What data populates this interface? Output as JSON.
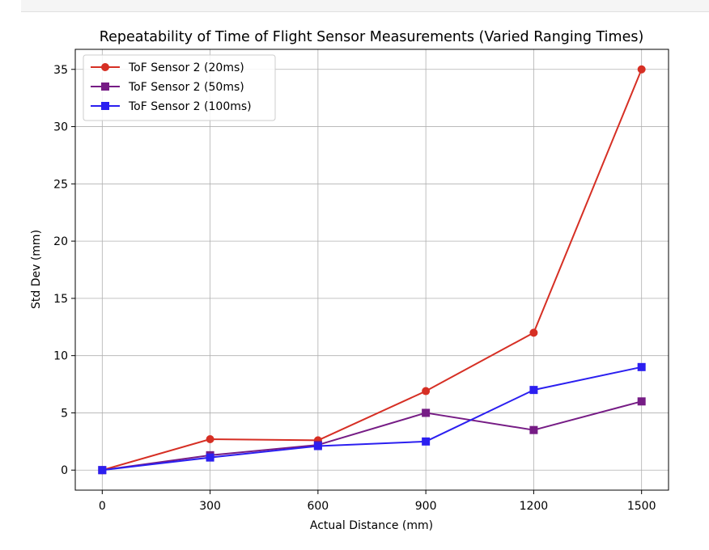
{
  "chart_data": {
    "type": "line",
    "title": "Repeatability of Time of Flight Sensor Measurements (Varied Ranging Times)",
    "xlabel": "Actual Distance (mm)",
    "ylabel": "Std Dev (mm)",
    "x": [
      0,
      300,
      600,
      900,
      1200,
      1500
    ],
    "xticks": [
      "0",
      "300",
      "600",
      "900",
      "1200",
      "1500"
    ],
    "yticks": [
      "0",
      "5",
      "10",
      "15",
      "20",
      "25",
      "30",
      "35"
    ],
    "xlim": [
      -75,
      1575
    ],
    "ylim": [
      -1.75,
      36.75
    ],
    "grid": true,
    "legend_position": "upper-left",
    "series": [
      {
        "name": "ToF Sensor 2 (20ms)",
        "values": [
          0.0,
          2.7,
          2.6,
          6.9,
          12.0,
          35.0
        ],
        "color": "#d62f24",
        "marker": "circle"
      },
      {
        "name": "ToF Sensor 2 (50ms)",
        "values": [
          0.0,
          1.3,
          2.2,
          5.0,
          3.5,
          6.0
        ],
        "color": "#761c85",
        "marker": "square"
      },
      {
        "name": "ToF Sensor 2 (100ms)",
        "values": [
          0.0,
          1.1,
          2.1,
          2.5,
          7.0,
          9.0
        ],
        "color": "#2b1ff0",
        "marker": "square"
      }
    ]
  }
}
